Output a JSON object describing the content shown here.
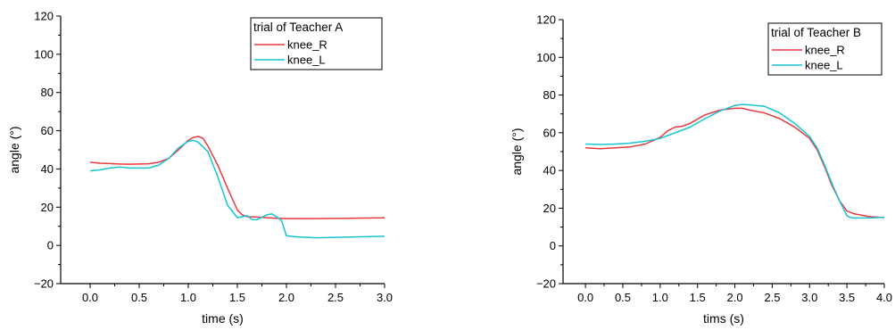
{
  "colors": {
    "knee_R": "#e8393f",
    "knee_L": "#17c4d0",
    "axis": "#000000"
  },
  "chart_data": [
    {
      "type": "line",
      "legend_title": "trial of Teacher A",
      "legend_placement": "top-right",
      "xlabel": "time (s)",
      "ylabel": "angle (°)",
      "xlim": [
        -0.3,
        3.0
      ],
      "ylim": [
        -20,
        120
      ],
      "xticks": [
        0.0,
        0.5,
        1.0,
        1.5,
        2.0,
        2.5,
        3.0
      ],
      "xtick_labels": [
        "0.0",
        "0.5",
        "1.0",
        "1.5",
        "2.0",
        "2.5",
        "3.0"
      ],
      "yticks": [
        -20,
        0,
        20,
        40,
        60,
        80,
        100,
        120
      ],
      "ytick_labels": [
        "−20",
        "0",
        "20",
        "40",
        "60",
        "80",
        "100",
        "120"
      ],
      "grid": false,
      "series": [
        {
          "name": "knee_R",
          "color": "#e8393f",
          "x": [
            0.0,
            0.1,
            0.2,
            0.3,
            0.4,
            0.5,
            0.6,
            0.7,
            0.8,
            0.9,
            1.0,
            1.05,
            1.1,
            1.15,
            1.2,
            1.3,
            1.4,
            1.5,
            1.55,
            1.6,
            1.7,
            1.8,
            1.9,
            2.0,
            2.2,
            2.5,
            2.8,
            3.0
          ],
          "y": [
            43.5,
            43.0,
            42.8,
            42.6,
            42.5,
            42.6,
            42.7,
            43.5,
            45.5,
            50.0,
            55.0,
            56.5,
            57.0,
            56.0,
            52.0,
            42.0,
            30.0,
            18.5,
            16.0,
            15.0,
            14.8,
            14.5,
            14.2,
            14.0,
            14.0,
            14.1,
            14.3,
            14.4
          ]
        },
        {
          "name": "knee_L",
          "color": "#17c4d0",
          "x": [
            0.0,
            0.1,
            0.2,
            0.3,
            0.4,
            0.5,
            0.6,
            0.7,
            0.8,
            0.9,
            1.0,
            1.05,
            1.1,
            1.2,
            1.3,
            1.4,
            1.5,
            1.55,
            1.6,
            1.65,
            1.7,
            1.8,
            1.85,
            1.9,
            1.95,
            2.0,
            2.1,
            2.3,
            2.6,
            3.0
          ],
          "y": [
            39.0,
            39.5,
            40.5,
            41.0,
            40.5,
            40.5,
            40.5,
            42.0,
            45.5,
            51.0,
            54.5,
            55.0,
            54.0,
            49.0,
            36.0,
            21.0,
            14.5,
            15.0,
            15.5,
            13.5,
            13.5,
            16.0,
            16.5,
            15.0,
            13.0,
            5.0,
            4.5,
            4.0,
            4.3,
            4.8
          ]
        }
      ]
    },
    {
      "type": "line",
      "legend_title": "trial of Teacher B",
      "legend_placement": "top-right",
      "xlabel": "tims (s)",
      "ylabel": "angle (°)",
      "xlim": [
        -0.3,
        4.0
      ],
      "ylim": [
        -20,
        120
      ],
      "xticks": [
        0.0,
        0.5,
        1.0,
        1.5,
        2.0,
        2.5,
        3.0,
        3.5,
        4.0
      ],
      "xtick_labels": [
        "0.0",
        "0.5",
        "1.0",
        "1.5",
        "2.0",
        "2.5",
        "3.0",
        "3.5",
        "4.0"
      ],
      "yticks": [
        -20,
        0,
        20,
        40,
        60,
        80,
        100,
        120
      ],
      "ytick_labels": [
        "−20",
        "0",
        "20",
        "40",
        "60",
        "80",
        "100",
        "120"
      ],
      "grid": false,
      "series": [
        {
          "name": "knee_R",
          "color": "#e8393f",
          "x": [
            0.0,
            0.2,
            0.4,
            0.6,
            0.8,
            1.0,
            1.1,
            1.2,
            1.3,
            1.4,
            1.6,
            1.8,
            2.0,
            2.1,
            2.2,
            2.4,
            2.6,
            2.8,
            3.0,
            3.1,
            3.2,
            3.3,
            3.4,
            3.5,
            3.6,
            3.8,
            4.0
          ],
          "y": [
            52.0,
            51.5,
            52.0,
            52.5,
            54.0,
            57.5,
            61.0,
            63.0,
            63.5,
            65.0,
            69.5,
            72.0,
            73.0,
            73.0,
            72.0,
            70.5,
            67.5,
            63.0,
            57.0,
            51.0,
            42.0,
            32.0,
            24.0,
            18.5,
            17.0,
            15.5,
            15.0
          ]
        },
        {
          "name": "knee_L",
          "color": "#17c4d0",
          "x": [
            0.0,
            0.2,
            0.4,
            0.6,
            0.8,
            1.0,
            1.1,
            1.2,
            1.4,
            1.6,
            1.8,
            2.0,
            2.1,
            2.2,
            2.4,
            2.6,
            2.8,
            3.0,
            3.1,
            3.2,
            3.3,
            3.4,
            3.5,
            3.55,
            3.6,
            3.8,
            4.0
          ],
          "y": [
            54.0,
            53.8,
            54.0,
            54.5,
            55.5,
            57.0,
            58.5,
            60.0,
            63.0,
            67.5,
            71.5,
            74.5,
            75.0,
            74.8,
            74.0,
            70.5,
            65.0,
            58.0,
            52.0,
            43.0,
            33.0,
            24.0,
            16.0,
            15.0,
            14.8,
            14.8,
            15.2
          ]
        }
      ]
    }
  ]
}
